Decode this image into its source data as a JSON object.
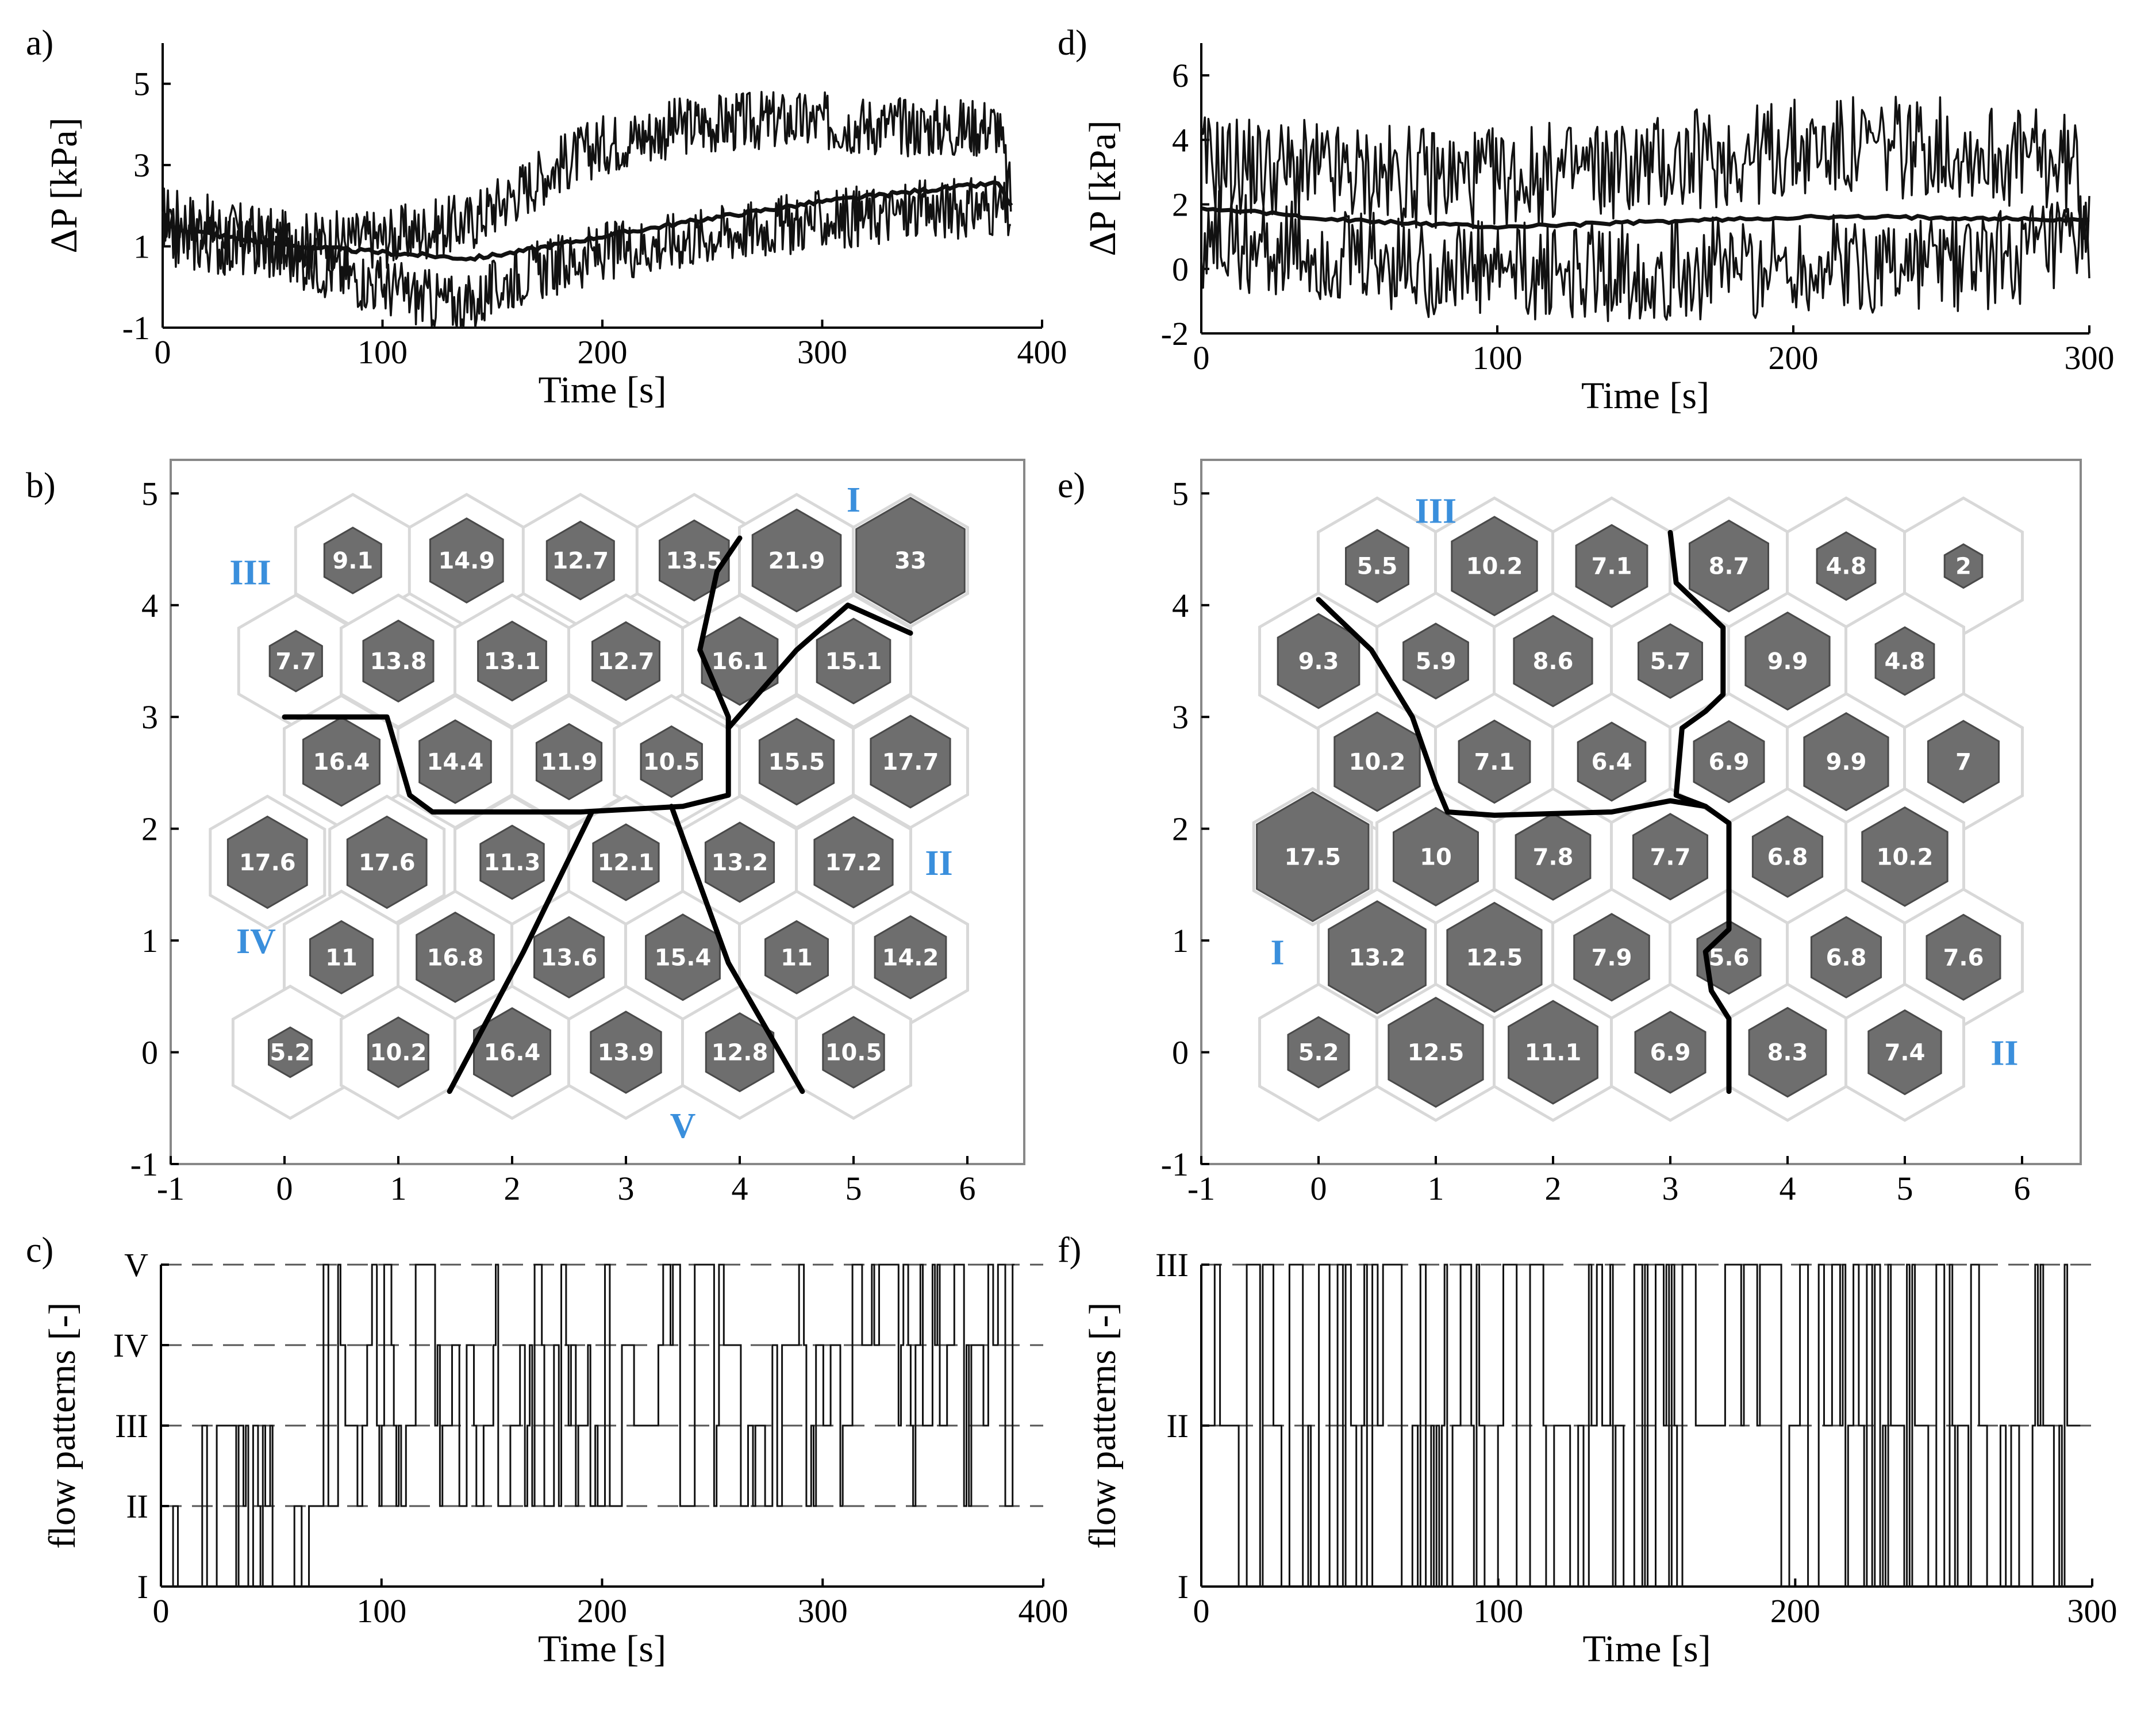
{
  "chart_data": [
    {
      "panel": "a)",
      "type": "line",
      "xlabel": "Time [s]",
      "ylabel": "ΔP [kPa]",
      "xlim": [
        0,
        400
      ],
      "ylim": [
        -1,
        6
      ],
      "xticks": [
        "0",
        "100",
        "200",
        "300",
        "400"
      ],
      "yticks": [
        "-1",
        "1",
        "3",
        "5"
      ],
      "series": [
        {
          "name": "upper",
          "style": "noisy",
          "points": [
            [
              0,
              1.8
            ],
            [
              30,
              1.4
            ],
            [
              60,
              1.1
            ],
            [
              100,
              1.2
            ],
            [
              140,
              1.6
            ],
            [
              160,
              2.3
            ],
            [
              180,
              3.0
            ],
            [
              200,
              3.5
            ],
            [
              240,
              4.0
            ],
            [
              280,
              4.1
            ],
            [
              320,
              4.0
            ],
            [
              360,
              3.9
            ],
            [
              380,
              4.0
            ],
            [
              386,
              2.1
            ]
          ]
        },
        {
          "name": "mean",
          "style": "smooth",
          "points": [
            [
              0,
              1.5
            ],
            [
              50,
              1.05
            ],
            [
              100,
              0.85
            ],
            [
              140,
              0.7
            ],
            [
              160,
              0.85
            ],
            [
              200,
              1.25
            ],
            [
              250,
              1.7
            ],
            [
              300,
              2.1
            ],
            [
              350,
              2.4
            ],
            [
              380,
              2.55
            ],
            [
              386,
              2.0
            ]
          ]
        },
        {
          "name": "lower",
          "style": "noisy",
          "points": [
            [
              0,
              1.2
            ],
            [
              50,
              0.9
            ],
            [
              90,
              0.2
            ],
            [
              120,
              -0.3
            ],
            [
              140,
              -0.45
            ],
            [
              160,
              0.25
            ],
            [
              200,
              0.85
            ],
            [
              250,
              1.3
            ],
            [
              300,
              1.65
            ],
            [
              350,
              1.9
            ],
            [
              380,
              2.0
            ],
            [
              386,
              1.7
            ]
          ]
        }
      ]
    },
    {
      "panel": "d)",
      "type": "line",
      "xlabel": "Time [s]",
      "ylabel": "ΔP [kPa]",
      "xlim": [
        0,
        300
      ],
      "ylim": [
        -2,
        7
      ],
      "xticks": [
        "0",
        "100",
        "200",
        "300"
      ],
      "yticks": [
        "-2",
        "0",
        "2",
        "4",
        "6"
      ],
      "series": [
        {
          "name": "upper",
          "style": "noisy",
          "points": [
            [
              0,
              3.3
            ],
            [
              50,
              2.9
            ],
            [
              100,
              2.8
            ],
            [
              150,
              3.2
            ],
            [
              200,
              3.7
            ],
            [
              250,
              3.8
            ],
            [
              295,
              3.2
            ],
            [
              300,
              1.7
            ]
          ]
        },
        {
          "name": "mean",
          "style": "smooth",
          "points": [
            [
              0,
              1.9
            ],
            [
              50,
              1.5
            ],
            [
              100,
              1.3
            ],
            [
              150,
              1.45
            ],
            [
              200,
              1.6
            ],
            [
              250,
              1.6
            ],
            [
              300,
              1.5
            ]
          ]
        },
        {
          "name": "lower",
          "style": "noisy",
          "points": [
            [
              0,
              1.0
            ],
            [
              50,
              0.2
            ],
            [
              100,
              -0.15
            ],
            [
              150,
              -0.05
            ],
            [
              200,
              0.1
            ],
            [
              250,
              0.2
            ],
            [
              295,
              0.5
            ],
            [
              300,
              1.0
            ]
          ]
        }
      ]
    },
    {
      "panel": "b)",
      "type": "scatter",
      "xlim": [
        -1,
        6.5
      ],
      "ylim": [
        -1,
        5.3
      ],
      "xticks": [
        "-1",
        "0",
        "1",
        "2",
        "3",
        "4",
        "5",
        "6"
      ],
      "yticks": [
        "-1",
        "0",
        "1",
        "2",
        "3",
        "4",
        "5"
      ],
      "max_value": 33,
      "cells": [
        {
          "x": 0.6,
          "y": 4.4,
          "v": 9.1,
          "label": "9.1"
        },
        {
          "x": 1.6,
          "y": 4.4,
          "v": 14.9,
          "label": "14.9"
        },
        {
          "x": 2.6,
          "y": 4.4,
          "v": 12.7,
          "label": "12.7"
        },
        {
          "x": 3.6,
          "y": 4.4,
          "v": 13.5,
          "label": "13.5"
        },
        {
          "x": 4.5,
          "y": 4.4,
          "v": 21.9,
          "label": "21.9"
        },
        {
          "x": 5.5,
          "y": 4.4,
          "v": 33,
          "label": "33"
        },
        {
          "x": 0.1,
          "y": 3.5,
          "v": 7.7,
          "label": "7.7"
        },
        {
          "x": 1.0,
          "y": 3.5,
          "v": 13.8,
          "label": "13.8"
        },
        {
          "x": 2.0,
          "y": 3.5,
          "v": 13.1,
          "label": "13.1"
        },
        {
          "x": 3.0,
          "y": 3.5,
          "v": 12.7,
          "label": "12.7"
        },
        {
          "x": 4.0,
          "y": 3.5,
          "v": 16.1,
          "label": "16.1"
        },
        {
          "x": 5.0,
          "y": 3.5,
          "v": 15.1,
          "label": "15.1"
        },
        {
          "x": 0.5,
          "y": 2.6,
          "v": 16.4,
          "label": "16.4"
        },
        {
          "x": 1.5,
          "y": 2.6,
          "v": 14.4,
          "label": "14.4"
        },
        {
          "x": 2.5,
          "y": 2.6,
          "v": 11.9,
          "label": "11.9"
        },
        {
          "x": 3.4,
          "y": 2.6,
          "v": 10.5,
          "label": "10.5"
        },
        {
          "x": 4.5,
          "y": 2.6,
          "v": 15.5,
          "label": "15.5"
        },
        {
          "x": 5.5,
          "y": 2.6,
          "v": 17.7,
          "label": "17.7"
        },
        {
          "x": -0.15,
          "y": 1.7,
          "v": 17.6,
          "label": "17.6"
        },
        {
          "x": 0.9,
          "y": 1.7,
          "v": 17.6,
          "label": "17.6"
        },
        {
          "x": 2.0,
          "y": 1.7,
          "v": 11.3,
          "label": "11.3"
        },
        {
          "x": 3.0,
          "y": 1.7,
          "v": 12.1,
          "label": "12.1"
        },
        {
          "x": 4.0,
          "y": 1.7,
          "v": 13.2,
          "label": "13.2"
        },
        {
          "x": 5.0,
          "y": 1.7,
          "v": 17.2,
          "label": "17.2"
        },
        {
          "x": 0.5,
          "y": 0.85,
          "v": 11,
          "label": "11"
        },
        {
          "x": 1.5,
          "y": 0.85,
          "v": 16.8,
          "label": "16.8"
        },
        {
          "x": 2.5,
          "y": 0.85,
          "v": 13.6,
          "label": "13.6"
        },
        {
          "x": 3.5,
          "y": 0.85,
          "v": 15.4,
          "label": "15.4"
        },
        {
          "x": 4.5,
          "y": 0.85,
          "v": 11,
          "label": "11"
        },
        {
          "x": 5.5,
          "y": 0.85,
          "v": 14.2,
          "label": "14.2"
        },
        {
          "x": 0.05,
          "y": -0.0,
          "v": 5.2,
          "label": "5.2"
        },
        {
          "x": 1.0,
          "y": -0.0,
          "v": 10.2,
          "label": "10.2"
        },
        {
          "x": 2.0,
          "y": -0.0,
          "v": 16.4,
          "label": "16.4"
        },
        {
          "x": 3.0,
          "y": -0.0,
          "v": 13.9,
          "label": "13.9"
        },
        {
          "x": 4.0,
          "y": -0.0,
          "v": 12.8,
          "label": "12.8"
        },
        {
          "x": 5.0,
          "y": -0.0,
          "v": 10.5,
          "label": "10.5"
        }
      ],
      "boundaries": [
        [
          [
            0.0,
            3.0
          ],
          [
            0.9,
            3.0
          ],
          [
            1.1,
            2.3
          ],
          [
            1.3,
            2.15
          ],
          [
            2.6,
            2.15
          ],
          [
            3.5,
            2.2
          ],
          [
            3.9,
            2.3
          ],
          [
            3.9,
            3.0
          ],
          [
            3.65,
            3.6
          ],
          [
            3.8,
            4.3
          ],
          [
            4.0,
            4.6
          ]
        ],
        [
          [
            3.9,
            2.9
          ],
          [
            4.5,
            3.6
          ],
          [
            4.95,
            4.0
          ],
          [
            5.5,
            3.75
          ]
        ],
        [
          [
            1.45,
            -0.35
          ],
          [
            2.1,
            0.9
          ],
          [
            2.7,
            2.15
          ]
        ],
        [
          [
            3.4,
            2.2
          ],
          [
            3.9,
            0.8
          ],
          [
            4.55,
            -0.35
          ]
        ]
      ],
      "regions": [
        {
          "label": "I",
          "x": 5.0,
          "y": 4.95
        },
        {
          "label": "II",
          "x": 5.75,
          "y": 1.7
        },
        {
          "label": "III",
          "x": -0.3,
          "y": 4.3
        },
        {
          "label": "IV",
          "x": -0.25,
          "y": 1.0
        },
        {
          "label": "V",
          "x": 3.5,
          "y": -0.65
        }
      ]
    },
    {
      "panel": "e)",
      "type": "scatter",
      "xlim": [
        -1,
        6.5
      ],
      "ylim": [
        -1,
        5.3
      ],
      "xticks": [
        "-1",
        "0",
        "1",
        "2",
        "3",
        "4",
        "5",
        "6"
      ],
      "yticks": [
        "-1",
        "0",
        "1",
        "2",
        "3",
        "4",
        "5"
      ],
      "max_value": 17.5,
      "cells": [
        {
          "x": 0.5,
          "y": 4.35,
          "v": 5.5,
          "label": "5.5"
        },
        {
          "x": 1.5,
          "y": 4.35,
          "v": 10.2,
          "label": "10.2"
        },
        {
          "x": 2.5,
          "y": 4.35,
          "v": 7.1,
          "label": "7.1"
        },
        {
          "x": 3.5,
          "y": 4.35,
          "v": 8.7,
          "label": "8.7"
        },
        {
          "x": 4.5,
          "y": 4.35,
          "v": 4.8,
          "label": "4.8"
        },
        {
          "x": 5.5,
          "y": 4.35,
          "v": 2,
          "label": "2"
        },
        {
          "x": 0.0,
          "y": 3.5,
          "v": 9.3,
          "label": "9.3"
        },
        {
          "x": 1.0,
          "y": 3.5,
          "v": 5.9,
          "label": "5.9"
        },
        {
          "x": 2.0,
          "y": 3.5,
          "v": 8.6,
          "label": "8.6"
        },
        {
          "x": 3.0,
          "y": 3.5,
          "v": 5.7,
          "label": "5.7"
        },
        {
          "x": 4.0,
          "y": 3.5,
          "v": 9.9,
          "label": "9.9"
        },
        {
          "x": 5.0,
          "y": 3.5,
          "v": 4.8,
          "label": "4.8"
        },
        {
          "x": 0.5,
          "y": 2.6,
          "v": 10.2,
          "label": "10.2"
        },
        {
          "x": 1.5,
          "y": 2.6,
          "v": 7.1,
          "label": "7.1"
        },
        {
          "x": 2.5,
          "y": 2.6,
          "v": 6.4,
          "label": "6.4"
        },
        {
          "x": 3.5,
          "y": 2.6,
          "v": 6.9,
          "label": "6.9"
        },
        {
          "x": 4.5,
          "y": 2.6,
          "v": 9.9,
          "label": "9.9"
        },
        {
          "x": 5.5,
          "y": 2.6,
          "v": 7,
          "label": "7"
        },
        {
          "x": -0.05,
          "y": 1.75,
          "v": 17.5,
          "label": "17.5"
        },
        {
          "x": 1.0,
          "y": 1.75,
          "v": 10,
          "label": "10"
        },
        {
          "x": 2.0,
          "y": 1.75,
          "v": 7.8,
          "label": "7.8"
        },
        {
          "x": 3.0,
          "y": 1.75,
          "v": 7.7,
          "label": "7.7"
        },
        {
          "x": 4.0,
          "y": 1.75,
          "v": 6.8,
          "label": "6.8"
        },
        {
          "x": 5.0,
          "y": 1.75,
          "v": 10.2,
          "label": "10.2"
        },
        {
          "x": 0.5,
          "y": 0.85,
          "v": 13.2,
          "label": "13.2"
        },
        {
          "x": 1.5,
          "y": 0.85,
          "v": 12.5,
          "label": "12.5"
        },
        {
          "x": 2.5,
          "y": 0.85,
          "v": 7.9,
          "label": "7.9"
        },
        {
          "x": 3.5,
          "y": 0.85,
          "v": 5.6,
          "label": "5.6"
        },
        {
          "x": 4.5,
          "y": 0.85,
          "v": 6.8,
          "label": "6.8"
        },
        {
          "x": 5.5,
          "y": 0.85,
          "v": 7.6,
          "label": "7.6"
        },
        {
          "x": 0.0,
          "y": -0.0,
          "v": 5.2,
          "label": "5.2"
        },
        {
          "x": 1.0,
          "y": -0.0,
          "v": 12.5,
          "label": "12.5"
        },
        {
          "x": 2.0,
          "y": -0.0,
          "v": 11.1,
          "label": "11.1"
        },
        {
          "x": 3.0,
          "y": -0.0,
          "v": 6.9,
          "label": "6.9"
        },
        {
          "x": 4.0,
          "y": -0.0,
          "v": 8.3,
          "label": "8.3"
        },
        {
          "x": 5.0,
          "y": -0.0,
          "v": 7.4,
          "label": "7.4"
        }
      ],
      "boundaries": [
        [
          [
            0.0,
            4.05
          ],
          [
            0.45,
            3.6
          ],
          [
            0.8,
            3.0
          ],
          [
            1.0,
            2.4
          ],
          [
            1.1,
            2.15
          ],
          [
            1.5,
            2.12
          ],
          [
            2.5,
            2.15
          ],
          [
            3.0,
            2.25
          ],
          [
            3.3,
            2.2
          ],
          [
            3.5,
            2.05
          ],
          [
            3.5,
            1.1
          ],
          [
            3.3,
            0.9
          ],
          [
            3.35,
            0.55
          ],
          [
            3.5,
            0.3
          ],
          [
            3.5,
            -0.35
          ]
        ],
        [
          [
            3.0,
            4.65
          ],
          [
            3.05,
            4.2
          ],
          [
            3.45,
            3.8
          ],
          [
            3.45,
            3.2
          ],
          [
            3.3,
            3.05
          ],
          [
            3.1,
            2.9
          ],
          [
            3.05,
            2.3
          ],
          [
            3.3,
            2.2
          ]
        ]
      ],
      "regions": [
        {
          "label": "III",
          "x": 1.0,
          "y": 4.85
        },
        {
          "label": "II",
          "x": 5.85,
          "y": 0.0
        },
        {
          "label": "I",
          "x": -0.35,
          "y": 0.9
        }
      ]
    },
    {
      "panel": "c)",
      "type": "line",
      "xlabel": "Time [s]",
      "ylabel": "flow patterns [-]",
      "xlim": [
        0,
        400
      ],
      "levels": [
        "I",
        "II",
        "III",
        "IV",
        "V"
      ],
      "xticks": [
        "0",
        "100",
        "200",
        "300",
        "400"
      ],
      "t_end": 387,
      "segments": [
        {
          "t0": 0,
          "t1": 70,
          "min": 1,
          "max": 3
        },
        {
          "t0": 70,
          "t1": 110,
          "min": 2,
          "max": 5
        },
        {
          "t0": 110,
          "t1": 180,
          "min": 2,
          "max": 5
        },
        {
          "t0": 180,
          "t1": 387,
          "min": 2,
          "max": 5
        }
      ]
    },
    {
      "panel": "f)",
      "type": "line",
      "xlabel": "Time [s]",
      "ylabel": "flow patterns [-]",
      "xlim": [
        0,
        300
      ],
      "levels": [
        "I",
        "II",
        "III"
      ],
      "xticks": [
        "0",
        "100",
        "200",
        "300"
      ],
      "t_end": 296,
      "segments": [
        {
          "t0": 0,
          "t1": 296,
          "min": 1,
          "max": 3
        }
      ]
    }
  ]
}
